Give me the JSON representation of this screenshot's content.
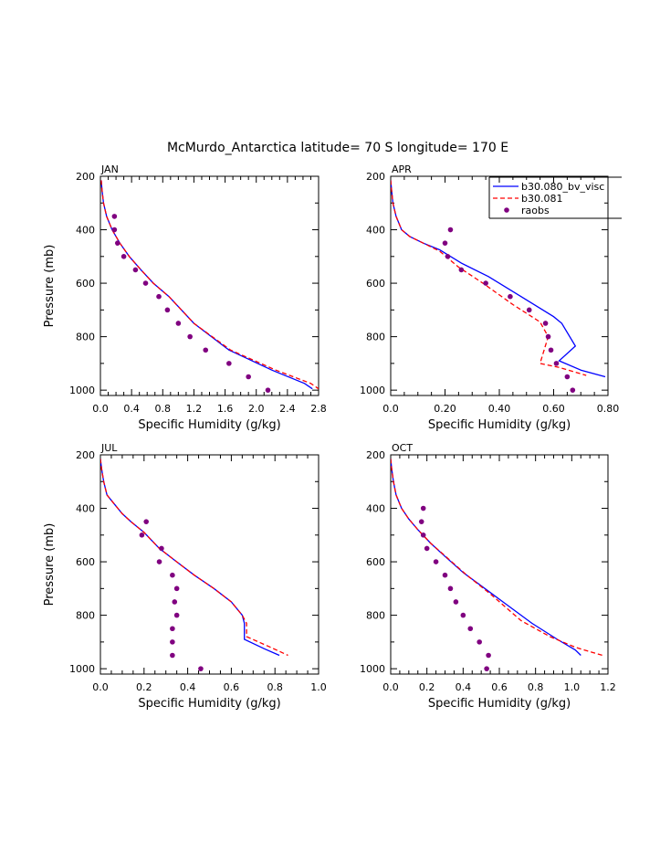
{
  "figure": {
    "title": "McMurdo_Antarctica  latitude= 70 S longitude= 170 E"
  },
  "legend": {
    "placement": "top-right of APR panel",
    "entries": [
      {
        "label": "b30.080_bv_visc",
        "style": "solid",
        "color": "#0000ff"
      },
      {
        "label": "b30.081",
        "style": "dashed",
        "color": "#ff0000"
      },
      {
        "label": "raobs",
        "style": "markers",
        "color": "#800080"
      }
    ]
  },
  "chart_data": [
    {
      "type": "line",
      "panel": "JAN",
      "xlabel": "Specific Humidity (g/kg)",
      "ylabel": "Pressure (mb)",
      "xlim": [
        0.0,
        2.8
      ],
      "ylim": [
        1020,
        200
      ],
      "xticks": [
        "0.0",
        "0.4",
        "0.8",
        "1.2",
        "1.6",
        "2.0",
        "2.4",
        "2.8"
      ],
      "yticks": [
        "200",
        "400",
        "600",
        "800",
        "1000"
      ],
      "series": [
        {
          "name": "b30.080_bv_visc",
          "color": "#0000ff",
          "dash": false,
          "x": [
            0.01,
            0.02,
            0.04,
            0.08,
            0.15,
            0.25,
            0.37,
            0.52,
            0.68,
            0.88,
            1.2,
            1.65,
            2.2,
            2.62,
            2.72
          ],
          "y": [
            215,
            250,
            300,
            350,
            400,
            450,
            500,
            550,
            600,
            650,
            750,
            850,
            925,
            975,
            995
          ]
        },
        {
          "name": "b30.081",
          "color": "#ff0000",
          "dash": true,
          "x": [
            0.01,
            0.02,
            0.04,
            0.08,
            0.15,
            0.25,
            0.37,
            0.52,
            0.68,
            0.88,
            1.2,
            1.67,
            2.25,
            2.7,
            2.8
          ],
          "y": [
            215,
            250,
            300,
            350,
            400,
            450,
            500,
            550,
            600,
            650,
            750,
            850,
            925,
            975,
            995
          ]
        },
        {
          "name": "raobs",
          "color": "#800080",
          "markers": true,
          "x": [
            0.18,
            0.18,
            0.22,
            0.3,
            0.45,
            0.58,
            0.75,
            0.86,
            1.0,
            1.15,
            1.35,
            1.65,
            1.9,
            2.15
          ],
          "y": [
            350,
            400,
            450,
            500,
            550,
            600,
            650,
            700,
            750,
            800,
            850,
            900,
            950,
            1000
          ]
        }
      ]
    },
    {
      "type": "line",
      "panel": "APR",
      "xlabel": "Specific Humidity (g/kg)",
      "ylabel": "",
      "xlim": [
        0.0,
        0.8
      ],
      "ylim": [
        1020,
        200
      ],
      "xticks": [
        "0.0",
        "0.20",
        "0.40",
        "0.60",
        "0.80"
      ],
      "yticks": [
        "200",
        "400",
        "600",
        "800",
        "1000"
      ],
      "series": [
        {
          "name": "b30.080_bv_visc",
          "color": "#0000ff",
          "dash": false,
          "x": [
            0.0,
            0.003,
            0.008,
            0.02,
            0.04,
            0.07,
            0.12,
            0.18,
            0.26,
            0.36,
            0.48,
            0.6,
            0.63,
            0.68,
            0.62,
            0.7,
            0.79
          ],
          "y": [
            215,
            250,
            300,
            350,
            400,
            425,
            450,
            475,
            525,
            575,
            650,
            725,
            750,
            835,
            890,
            925,
            950
          ]
        },
        {
          "name": "b30.081",
          "color": "#ff0000",
          "dash": true,
          "x": [
            0.0,
            0.003,
            0.008,
            0.02,
            0.04,
            0.07,
            0.12,
            0.18,
            0.25,
            0.34,
            0.45,
            0.55,
            0.58,
            0.55,
            0.62,
            0.72
          ],
          "y": [
            215,
            250,
            300,
            350,
            400,
            425,
            450,
            480,
            540,
            600,
            680,
            745,
            800,
            900,
            915,
            945
          ]
        },
        {
          "name": "raobs",
          "color": "#800080",
          "markers": true,
          "x": [
            0.22,
            0.2,
            0.21,
            0.26,
            0.35,
            0.44,
            0.51,
            0.57,
            0.58,
            0.59,
            0.61,
            0.65,
            0.67
          ],
          "y": [
            400,
            450,
            500,
            550,
            600,
            650,
            700,
            750,
            800,
            850,
            900,
            950,
            1000
          ]
        }
      ]
    },
    {
      "type": "line",
      "panel": "JUL",
      "xlabel": "Specific Humidity (g/kg)",
      "ylabel": "Pressure (mb)",
      "xlim": [
        0.0,
        1.0
      ],
      "ylim": [
        1020,
        200
      ],
      "xticks": [
        "0.0",
        "0.2",
        "0.4",
        "0.6",
        "0.8",
        "1.0"
      ],
      "yticks": [
        "200",
        "400",
        "600",
        "800",
        "1000"
      ],
      "series": [
        {
          "name": "b30.080_bv_visc",
          "color": "#0000ff",
          "dash": false,
          "x": [
            0.0,
            0.005,
            0.015,
            0.03,
            0.06,
            0.1,
            0.14,
            0.2,
            0.27,
            0.35,
            0.43,
            0.52,
            0.6,
            0.65,
            0.66,
            0.66,
            0.75,
            0.82
          ],
          "y": [
            215,
            250,
            300,
            350,
            380,
            420,
            450,
            490,
            550,
            600,
            650,
            700,
            750,
            800,
            830,
            890,
            925,
            950
          ]
        },
        {
          "name": "b30.081",
          "color": "#ff0000",
          "dash": true,
          "x": [
            0.0,
            0.005,
            0.015,
            0.03,
            0.06,
            0.1,
            0.14,
            0.2,
            0.27,
            0.35,
            0.43,
            0.52,
            0.6,
            0.65,
            0.67,
            0.67,
            0.78,
            0.86
          ],
          "y": [
            215,
            250,
            300,
            350,
            380,
            420,
            450,
            490,
            550,
            600,
            650,
            700,
            750,
            800,
            830,
            880,
            920,
            950
          ]
        },
        {
          "name": "raobs",
          "color": "#800080",
          "markers": true,
          "x": [
            0.21,
            0.19,
            0.28,
            0.27,
            0.33,
            0.35,
            0.34,
            0.35,
            0.33,
            0.33,
            0.33,
            0.46
          ],
          "y": [
            450,
            500,
            550,
            600,
            650,
            700,
            750,
            800,
            850,
            900,
            950,
            1000
          ]
        }
      ]
    },
    {
      "type": "line",
      "panel": "OCT",
      "xlabel": "Specific Humidity (g/kg)",
      "ylabel": "",
      "xlim": [
        0.0,
        1.2
      ],
      "ylim": [
        1020,
        200
      ],
      "xticks": [
        "0.0",
        "0.2",
        "0.4",
        "0.6",
        "0.8",
        "1.0",
        "1.2"
      ],
      "yticks": [
        "200",
        "400",
        "600",
        "800",
        "1000"
      ],
      "series": [
        {
          "name": "b30.080_bv_visc",
          "color": "#0000ff",
          "dash": false,
          "x": [
            0.0,
            0.005,
            0.015,
            0.03,
            0.06,
            0.1,
            0.15,
            0.22,
            0.3,
            0.4,
            0.52,
            0.64,
            0.78,
            0.92,
            1.02,
            1.05
          ],
          "y": [
            215,
            250,
            300,
            350,
            400,
            440,
            480,
            530,
            580,
            640,
            700,
            760,
            830,
            890,
            930,
            950
          ]
        },
        {
          "name": "b30.081",
          "color": "#ff0000",
          "dash": true,
          "x": [
            0.0,
            0.005,
            0.015,
            0.03,
            0.06,
            0.1,
            0.15,
            0.22,
            0.32,
            0.42,
            0.55,
            0.72,
            0.88,
            1.02,
            1.12,
            1.17
          ],
          "y": [
            215,
            250,
            300,
            350,
            400,
            440,
            480,
            530,
            590,
            650,
            720,
            820,
            880,
            920,
            940,
            950
          ]
        },
        {
          "name": "raobs",
          "color": "#800080",
          "markers": true,
          "x": [
            0.18,
            0.17,
            0.18,
            0.2,
            0.25,
            0.3,
            0.33,
            0.36,
            0.4,
            0.44,
            0.49,
            0.54,
            0.53
          ],
          "y": [
            400,
            450,
            500,
            550,
            600,
            650,
            700,
            750,
            800,
            850,
            900,
            950,
            1000
          ]
        }
      ]
    }
  ]
}
